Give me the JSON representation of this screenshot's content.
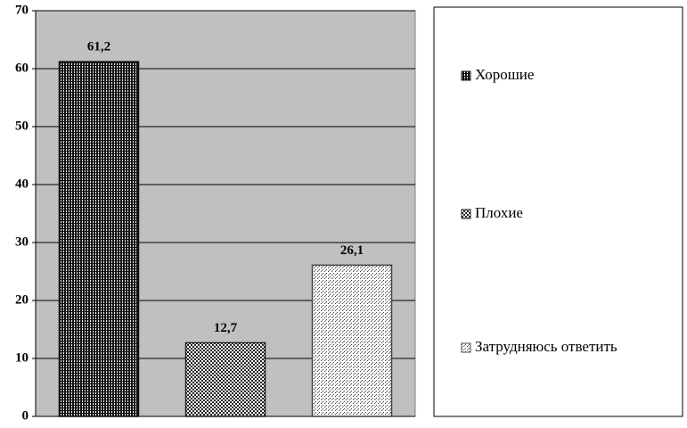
{
  "chart_data": {
    "type": "bar",
    "categories": [
      null
    ],
    "series": [
      {
        "name": "Хорошие",
        "color": "#111111",
        "values": [
          61.2
        ],
        "value_labels": [
          "61,2"
        ]
      },
      {
        "name": "Плохие",
        "color": "#222222",
        "values": [
          12.7
        ],
        "value_labels": [
          "12,7"
        ]
      },
      {
        "name": "Затрудняюсь ответить",
        "color": "#444444",
        "values": [
          26.1
        ],
        "value_labels": [
          "26,1"
        ]
      }
    ],
    "ylim": [
      0,
      70
    ],
    "yticks": [
      0,
      10,
      20,
      30,
      40,
      50,
      60,
      70
    ],
    "grid": true,
    "legend": "right"
  }
}
